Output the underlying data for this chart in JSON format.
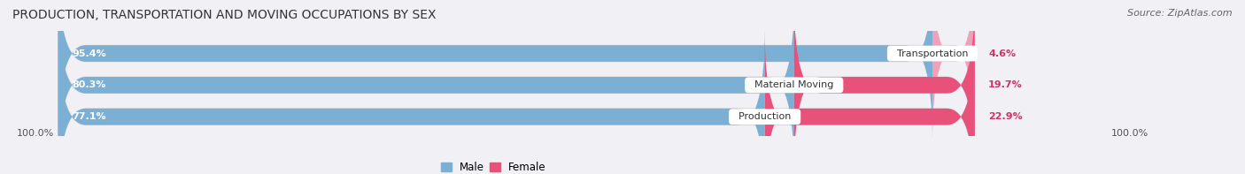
{
  "title": "PRODUCTION, TRANSPORTATION AND MOVING OCCUPATIONS BY SEX",
  "source": "Source: ZipAtlas.com",
  "categories": [
    "Transportation",
    "Material Moving",
    "Production"
  ],
  "male_pct": [
    95.4,
    80.3,
    77.1
  ],
  "female_pct": [
    4.6,
    19.7,
    22.9
  ],
  "male_color": "#7bafd4",
  "female_colors": [
    "#f0a0b8",
    "#e8527a",
    "#e8527a"
  ],
  "bar_bg_color": "#e4e4ea",
  "title_fontsize": 10,
  "source_fontsize": 8,
  "bar_label_fontsize": 8,
  "category_label_fontsize": 8,
  "legend_fontsize": 8.5,
  "axis_label_fontsize": 8,
  "figsize": [
    14.06,
    1.97
  ],
  "dpi": 100
}
